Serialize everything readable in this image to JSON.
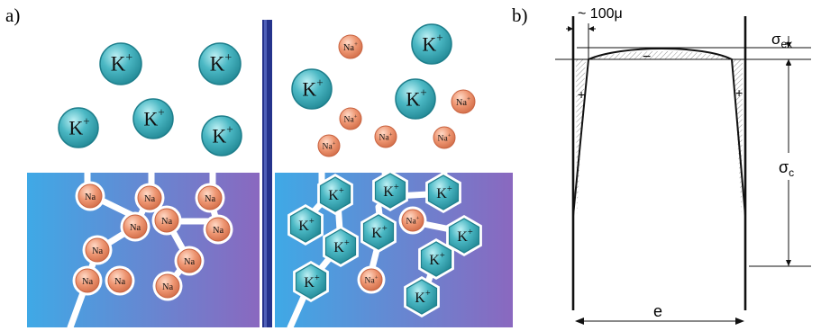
{
  "panel_a": {
    "label": "a)",
    "k_ion": {
      "text": "K",
      "sup": "+"
    },
    "na_solution": {
      "text": "Na",
      "sup": "+"
    },
    "na_glass": {
      "text": "Na"
    },
    "colors": {
      "k_fill": "#4bb8c4",
      "k_stroke": "#1e7f8c",
      "na_fill": "#ee9672",
      "na_stroke": "#c8623f",
      "glass_left": "#3fa9e6",
      "glass_right": "#8a68bf",
      "channel": "#ffffff",
      "separator": "#25338c"
    }
  },
  "panel_b": {
    "label": "b)",
    "thickness_label": "~ 100μ",
    "sigma_ex": {
      "sym": "σ",
      "sub": "ex"
    },
    "sigma_c": {
      "sym": "σ",
      "sub": "c"
    },
    "width_label": "e",
    "minus_sign": "−",
    "plus_left": "+",
    "plus_right": "+"
  }
}
